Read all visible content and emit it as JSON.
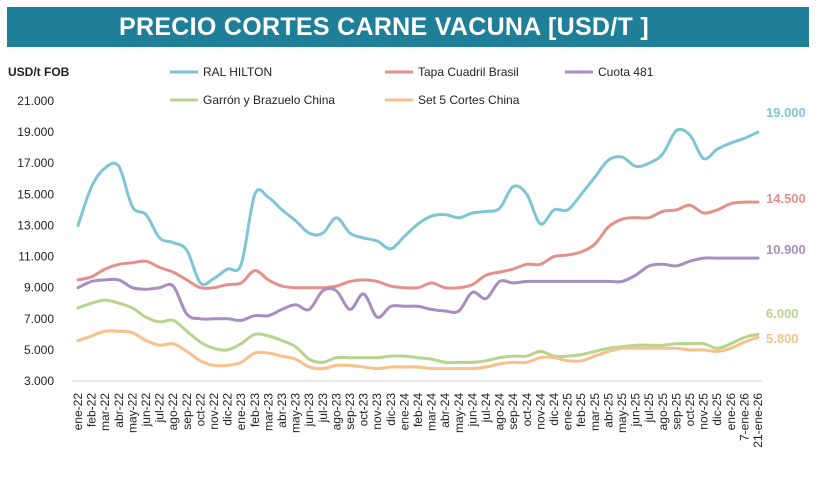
{
  "header": {
    "title": "PRECIO CORTES CARNE VACUNA [USD/T ]"
  },
  "chart_data": {
    "type": "line",
    "title": "PRECIO CORTES CARNE VACUNA [USD/T ]",
    "ylabel": "USD/t FOB",
    "xlabel": "",
    "ylim": [
      3000,
      21000
    ],
    "ytick_labels": [
      "21.000",
      "19.000",
      "17.000",
      "15.000",
      "13.000",
      "11.000",
      "9.000",
      "7.000",
      "5.000",
      "3.000"
    ],
    "grid": false,
    "legend_position": "top",
    "categories": [
      "ene-22",
      "feb-22",
      "mar-22",
      "abr-22",
      "may-22",
      "jun-22",
      "jul-22",
      "ago-22",
      "sep-22",
      "oct-22",
      "nov-22",
      "dic-22",
      "ene-23",
      "feb-23",
      "mar-23",
      "abr-23",
      "may-23",
      "jun-23",
      "jul-23",
      "ago-23",
      "sep-23",
      "oct-23",
      "nov-23",
      "dic-23",
      "ene-24",
      "feb-24",
      "mar-24",
      "abr-24",
      "may-24",
      "jun-24",
      "jul-24",
      "ago-24",
      "sep-24",
      "oct-24",
      "nov-24",
      "dic-24",
      "ene-25",
      "feb-25",
      "mar-25",
      "abr-25",
      "may-25",
      "jun-25",
      "jul-25",
      "ago-25",
      "sep-25",
      "oct-25",
      "nov-25",
      "dic-25",
      "ene-26",
      "7-ene-26",
      "21-ene-26"
    ],
    "series": [
      {
        "name": "RAL HILTON",
        "color": "#7ec5d6",
        "end_label": "19.000",
        "values": [
          13000,
          15500,
          16700,
          16800,
          14200,
          13700,
          12200,
          11900,
          11400,
          9300,
          9600,
          10200,
          10500,
          15000,
          14800,
          14000,
          13300,
          12500,
          12500,
          13500,
          12500,
          12200,
          12000,
          11500,
          12300,
          13100,
          13600,
          13700,
          13500,
          13800,
          13900,
          14100,
          15500,
          15000,
          13100,
          14000,
          14000,
          15000,
          16100,
          17200,
          17400,
          16800,
          17000,
          17600,
          19100,
          18800,
          17300,
          17900,
          18300,
          18600,
          19000
        ]
      },
      {
        "name": "Tapa Cuadril Brasil",
        "color": "#e3918a",
        "end_label": "14.500",
        "values": [
          9500,
          9700,
          10200,
          10500,
          10600,
          10700,
          10300,
          10000,
          9500,
          9000,
          9000,
          9200,
          9300,
          10100,
          9500,
          9100,
          9000,
          9000,
          9000,
          9100,
          9400,
          9500,
          9400,
          9100,
          9000,
          9000,
          9300,
          9000,
          9000,
          9200,
          9800,
          10000,
          10200,
          10500,
          10500,
          11000,
          11100,
          11300,
          11800,
          12900,
          13400,
          13500,
          13500,
          13900,
          14000,
          14300,
          13800,
          14000,
          14400,
          14500,
          14500
        ]
      },
      {
        "name": "Cuota 481",
        "color": "#a98dc1",
        "end_label": "10.900",
        "values": [
          9000,
          9400,
          9500,
          9500,
          9000,
          8900,
          9000,
          9100,
          7300,
          7000,
          7000,
          7000,
          6900,
          7200,
          7200,
          7600,
          7900,
          7600,
          8800,
          8800,
          7600,
          8600,
          7100,
          7800,
          7800,
          7800,
          7600,
          7500,
          7500,
          8700,
          8300,
          9400,
          9300,
          9400,
          9400,
          9400,
          9400,
          9400,
          9400,
          9400,
          9400,
          9800,
          10400,
          10500,
          10400,
          10700,
          10900,
          10900,
          10900,
          10900,
          10900
        ]
      },
      {
        "name": "Garrón y Brazuelo China",
        "color": "#b6d48e",
        "end_label": "6.000",
        "values": [
          7700,
          8000,
          8200,
          8000,
          7700,
          7100,
          6800,
          6900,
          6200,
          5500,
          5100,
          5000,
          5400,
          6000,
          5900,
          5600,
          5200,
          4400,
          4200,
          4500,
          4500,
          4500,
          4500,
          4600,
          4600,
          4500,
          4400,
          4200,
          4200,
          4200,
          4300,
          4500,
          4600,
          4600,
          4900,
          4600,
          4600,
          4700,
          4900,
          5100,
          5200,
          5300,
          5300,
          5300,
          5400,
          5400,
          5400,
          5100,
          5400,
          5800,
          6000
        ]
      },
      {
        "name": "Set 5 Cortes China",
        "color": "#f8c08a",
        "end_label": "5.800",
        "values": [
          5600,
          5900,
          6200,
          6200,
          6100,
          5600,
          5300,
          5400,
          4900,
          4300,
          4000,
          4000,
          4200,
          4800,
          4800,
          4600,
          4400,
          3900,
          3800,
          4000,
          4000,
          3900,
          3800,
          3900,
          3900,
          3900,
          3800,
          3800,
          3800,
          3800,
          3900,
          4100,
          4200,
          4200,
          4500,
          4500,
          4300,
          4300,
          4600,
          4900,
          5100,
          5100,
          5100,
          5100,
          5100,
          5000,
          5000,
          4900,
          5100,
          5500,
          5800
        ]
      }
    ]
  }
}
